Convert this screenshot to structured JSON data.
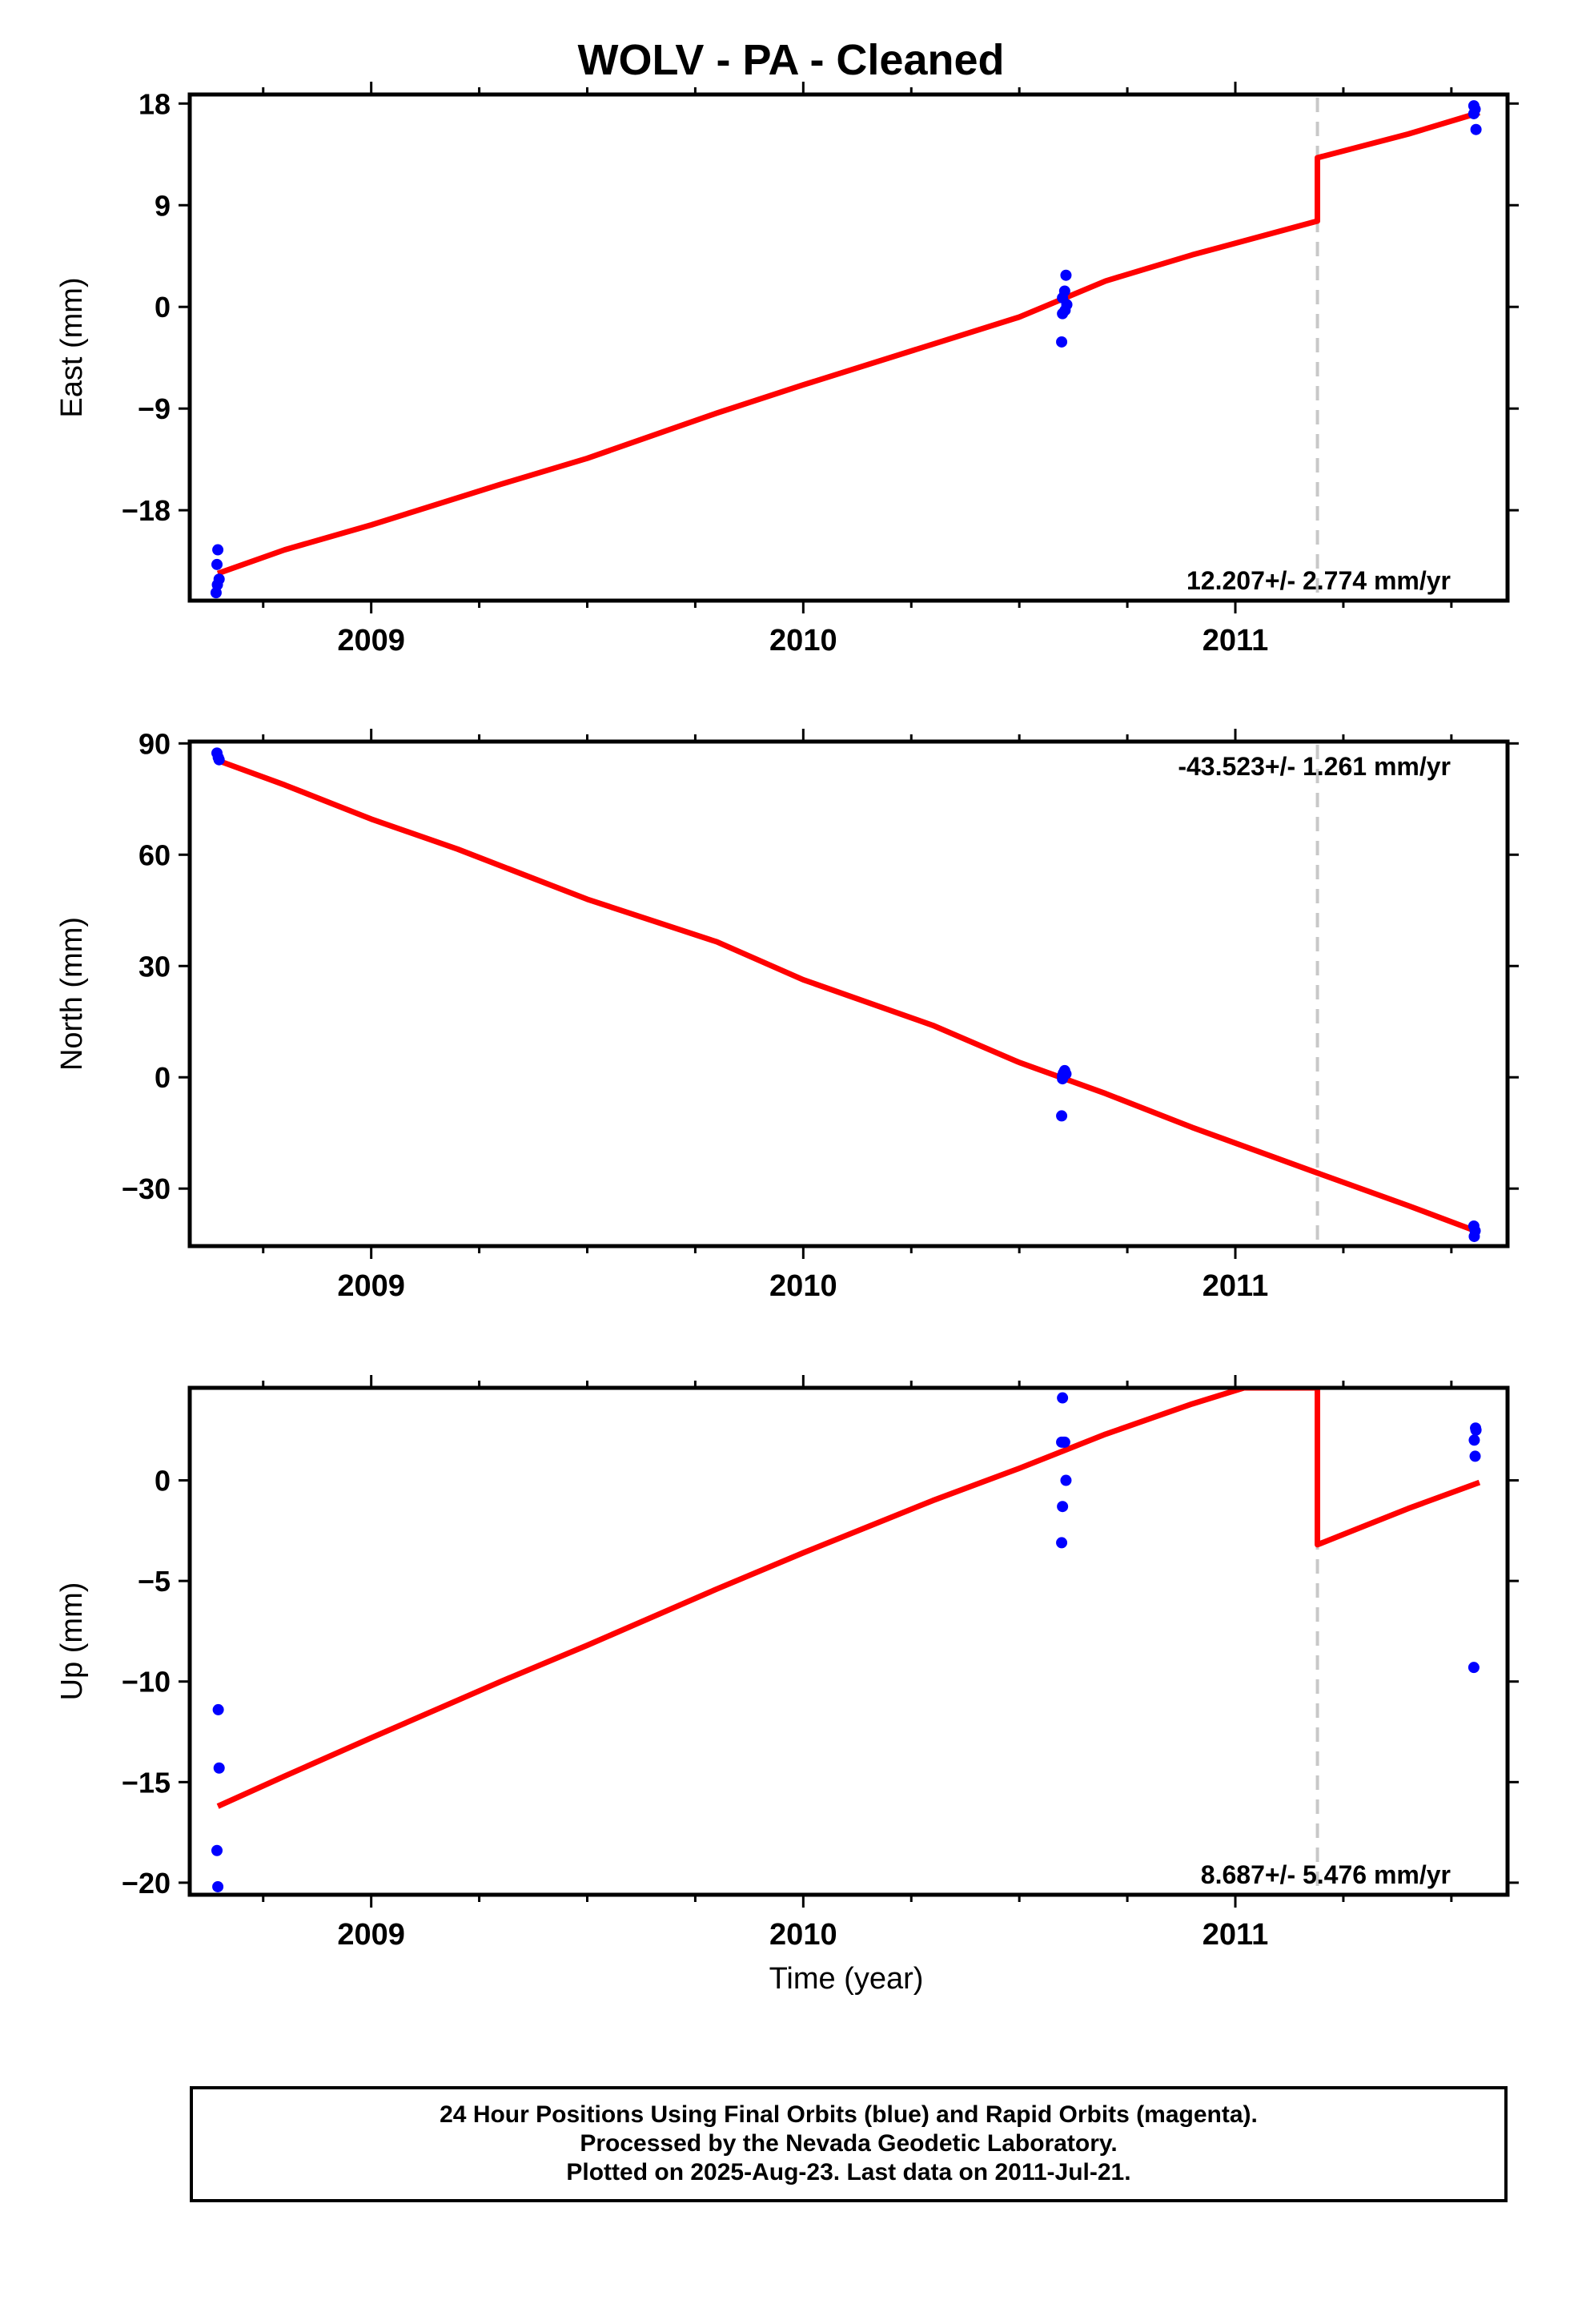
{
  "title": "WOLV  - PA - Cleaned",
  "xlabel": "Time (year)",
  "footer": {
    "line1": "24 Hour Positions Using Final Orbits (blue) and Rapid Orbits (magenta).",
    "line2": "Processed by the Nevada Geodetic Laboratory.",
    "line3": "Plotted on 2025-Aug-23. Last data on 2011-Jul-21."
  },
  "colors": {
    "points": "#0000ff",
    "model": "#ff0000",
    "offset_line": "#c8c8c8",
    "axes": "#000000"
  },
  "chart_data": [
    {
      "type": "scatter",
      "name": "east",
      "ylabel": "East (mm)",
      "xlim": [
        2008.58,
        2011.63
      ],
      "ylim": [
        -26,
        18.8
      ],
      "yticks": [
        -18,
        -9,
        0,
        9,
        18
      ],
      "xticks": [
        2009,
        2010,
        2011
      ],
      "offset_epoch": 2011.19,
      "annotation": "12.207+/- 2.774 mm/yr",
      "annotation_pos": "bottom-right",
      "points": {
        "x": [
          2008.645,
          2008.643,
          2008.641,
          2008.648,
          2008.644,
          2010.598,
          2010.6,
          2010.608,
          2010.605,
          2010.61,
          2010.606,
          2010.6,
          2011.552,
          2011.555,
          2011.552,
          2011.557
        ],
        "y": [
          -21.5,
          -22.8,
          -25.3,
          -24.1,
          -24.6,
          -3.1,
          0.8,
          2.8,
          1.4,
          0.2,
          -0.3,
          -0.6,
          17.8,
          17.5,
          17.1,
          15.7
        ]
      },
      "model": {
        "x": [
          2008.645,
          2008.8,
          2009.0,
          2009.3,
          2009.5,
          2009.8,
          2010.0,
          2010.3,
          2010.5,
          2010.7,
          2010.9,
          2011.19,
          2011.19,
          2011.4,
          2011.565
        ],
        "y": [
          -23.6,
          -21.5,
          -19.3,
          -15.7,
          -13.4,
          -9.4,
          -6.9,
          -3.3,
          -0.9,
          2.3,
          4.6,
          7.6,
          13.2,
          15.3,
          17.2
        ]
      }
    },
    {
      "type": "scatter",
      "name": "north",
      "ylabel": "North (mm)",
      "xlim": [
        2008.58,
        2011.63
      ],
      "ylim": [
        -45.5,
        90.5
      ],
      "yticks": [
        -30,
        0,
        30,
        60,
        90
      ],
      "xticks": [
        2009,
        2010,
        2011
      ],
      "offset_epoch": 2011.19,
      "annotation": "-43.523+/- 1.261 mm/yr",
      "annotation_pos": "top-right",
      "points": {
        "x": [
          2008.643,
          2008.646,
          2008.648,
          2010.598,
          2010.6,
          2010.602,
          2010.605,
          2010.608,
          2010.6,
          2011.552,
          2011.555,
          2011.553
        ],
        "y": [
          87.4,
          86.2,
          85.6,
          -10.4,
          0.4,
          1.1,
          1.8,
          0.9,
          -0.4,
          -40.1,
          -41.4,
          -42.9
        ]
      },
      "model": {
        "x": [
          2008.645,
          2008.8,
          2009.0,
          2009.2,
          2009.5,
          2009.8,
          2010.0,
          2010.3,
          2010.5,
          2010.7,
          2010.9,
          2011.19,
          2011.4,
          2011.565
        ],
        "y": [
          85.4,
          78.8,
          69.6,
          61.5,
          48.0,
          36.5,
          26.3,
          14.0,
          4.0,
          -4.4,
          -13.5,
          -25.8,
          -34.6,
          -41.8
        ]
      }
    },
    {
      "type": "scatter",
      "name": "up",
      "ylabel": "Up (mm)",
      "xlim": [
        2008.58,
        2011.63
      ],
      "ylim": [
        -20.6,
        4.6
      ],
      "yticks": [
        -20,
        -15,
        -10,
        -5,
        0
      ],
      "xticks": [
        2009,
        2010,
        2011
      ],
      "offset_epoch": 2011.19,
      "annotation": "8.687+/- 5.476 mm/yr",
      "annotation_pos": "bottom-right",
      "points": {
        "x": [
          2008.646,
          2008.648,
          2008.643,
          2008.645,
          2010.6,
          2010.598,
          2010.602,
          2010.605,
          2010.608,
          2010.6,
          2010.598,
          2011.552,
          2011.555,
          2011.553,
          2011.557,
          2011.556
        ],
        "y": [
          -11.4,
          -14.3,
          -18.4,
          -20.2,
          4.1,
          1.9,
          1.9,
          1.9,
          0.0,
          -1.3,
          -3.1,
          -9.3,
          1.2,
          2.0,
          2.5,
          2.6
        ]
      },
      "model": {
        "x": [
          2008.645,
          2008.8,
          2009.0,
          2009.3,
          2009.5,
          2009.8,
          2010.0,
          2010.3,
          2010.5,
          2010.7,
          2010.9,
          2011.02,
          2011.19,
          2011.19,
          2011.4,
          2011.565
        ],
        "y": [
          -16.2,
          -14.7,
          -12.8,
          -10.0,
          -8.2,
          -5.4,
          -3.6,
          -1.0,
          0.6,
          2.3,
          3.8,
          4.6,
          4.6,
          -3.2,
          -1.4,
          -0.1
        ]
      }
    }
  ]
}
